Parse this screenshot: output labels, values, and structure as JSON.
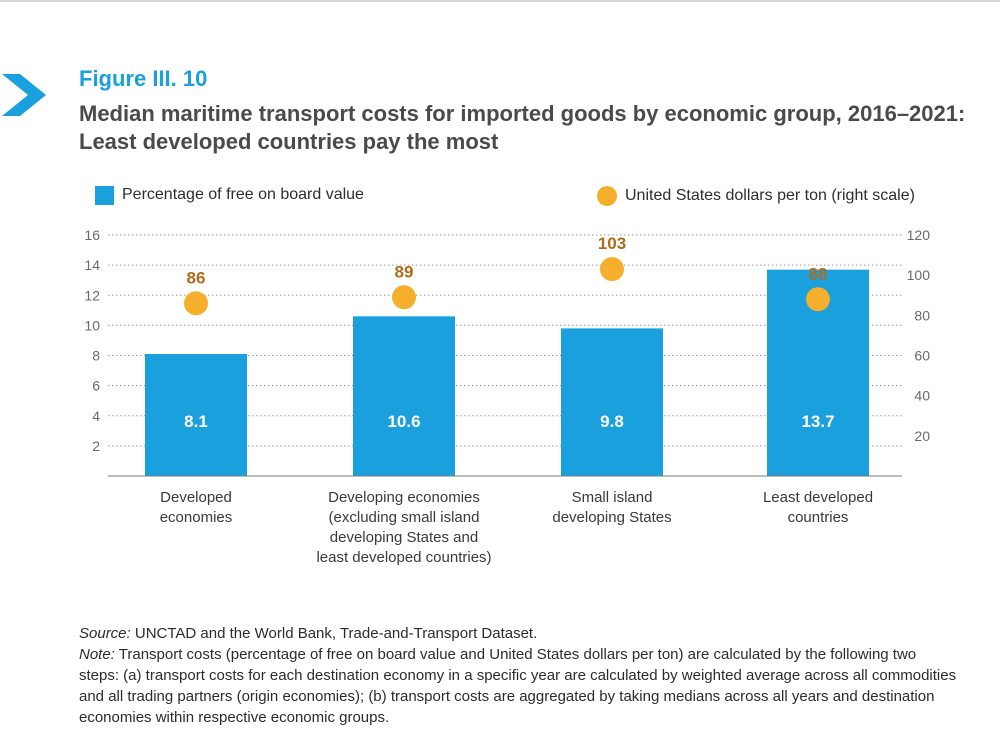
{
  "figure": {
    "label": "Figure III. 10",
    "title": "Median maritime transport costs for imported goods by economic group, 2016–2021: Least developed countries pay the most"
  },
  "legend": {
    "bars_label": "Percentage of free on board value",
    "dots_label": "United States dollars per ton (right scale)"
  },
  "colors": {
    "accent": "#1aa0dc",
    "bar": "#1aa0dc",
    "dot": "#f6ae2d",
    "dot_label": "#b06a1c"
  },
  "chart_data": {
    "type": "bar",
    "categories": [
      "Developed economies",
      "Developing economies (excluding small island developing States and least developed countries)",
      "Small island developing States",
      "Least developed countries"
    ],
    "category_lines": [
      [
        "Developed",
        "economies"
      ],
      [
        "Developing economies",
        "(excluding small island",
        "developing States and",
        "least developed countries)"
      ],
      [
        "Small island",
        "developing States"
      ],
      [
        "Least developed",
        "countries"
      ]
    ],
    "series": [
      {
        "name": "Percentage of free on board value",
        "type": "bar",
        "axis": "left",
        "values": [
          8.1,
          10.6,
          9.8,
          13.7
        ]
      },
      {
        "name": "United States dollars per ton (right scale)",
        "type": "scatter",
        "axis": "right",
        "values": [
          86,
          89,
          103,
          88
        ]
      }
    ],
    "bar_labels": [
      "8.1",
      "10.6",
      "9.8",
      "13.7"
    ],
    "dot_labels": [
      "86",
      "89",
      "103",
      "88"
    ],
    "y_left": {
      "min": 0,
      "max": 16,
      "ticks": [
        2,
        4,
        6,
        8,
        10,
        12,
        14,
        16
      ]
    },
    "y_right": {
      "min": 0,
      "max": 120,
      "ticks": [
        20,
        40,
        60,
        80,
        100,
        120
      ]
    },
    "grid": true,
    "legend_position": "top"
  },
  "notes": {
    "source_prefix": "Source:",
    "source_text": " UNCTAD and the World Bank, Trade-and-Transport Dataset.",
    "note_prefix": "Note:",
    "note_text": " Transport costs (percentage of free on board value and United States dollars per ton) are calculated by the following two steps: (a) transport costs for each destination economy in a specific year are calculated by weighted average across all commodities and all trading partners (origin economies); (b) transport costs are aggregated by taking medians across all years and destination economies within respective economic groups."
  }
}
